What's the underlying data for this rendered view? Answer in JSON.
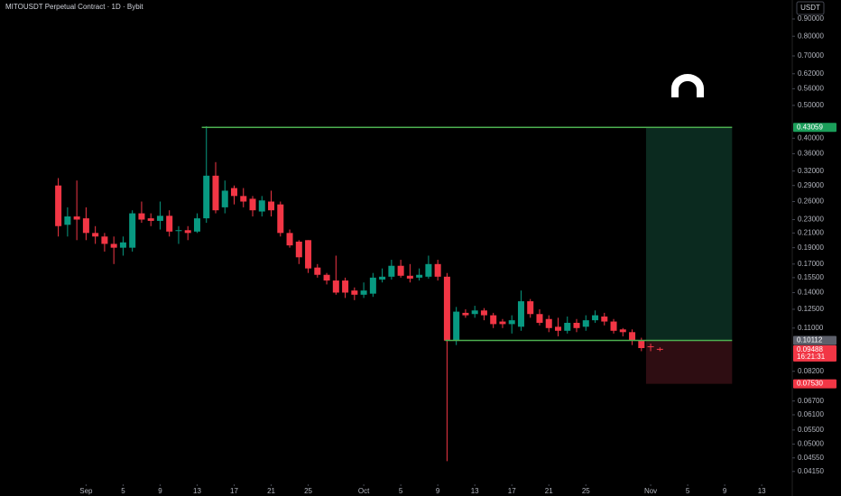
{
  "chart_data": {
    "type": "candlestick",
    "title": "MITOUSDT Perpetual Contract · 1D · Bybit",
    "currency": "USDT",
    "log_scale": true,
    "up_color": "#089981",
    "down_color": "#f23645",
    "open": [
      0.29,
      0.222,
      0.235,
      0.232,
      0.21,
      0.205,
      0.195,
      0.19,
      0.19,
      0.24,
      0.232,
      0.228,
      0.236,
      0.213,
      0.214,
      0.212,
      0.232,
      0.31,
      0.25,
      0.285,
      0.27,
      0.265,
      0.243,
      0.26,
      0.255,
      0.21,
      0.198,
      0.2,
      0.166,
      0.158,
      0.152,
      0.152,
      0.142,
      0.138,
      0.139,
      0.153,
      0.156,
      0.168,
      0.157,
      0.155,
      0.156,
      0.17,
      0.156,
      0.101,
      0.122,
      0.121,
      0.124,
      0.12,
      0.115,
      0.113,
      0.111,
      0.132,
      0.121,
      0.117,
      0.111,
      0.108,
      0.114,
      0.111,
      0.116,
      0.119,
      0.115,
      0.109,
      0.107,
      0.101,
      0.0972,
      0.0955
    ],
    "high": [
      0.305,
      0.25,
      0.3,
      0.25,
      0.22,
      0.21,
      0.205,
      0.205,
      0.245,
      0.26,
      0.24,
      0.26,
      0.245,
      0.22,
      0.22,
      0.24,
      0.434,
      0.34,
      0.3,
      0.29,
      0.285,
      0.27,
      0.27,
      0.28,
      0.26,
      0.215,
      0.2,
      0.2,
      0.17,
      0.16,
      0.18,
      0.155,
      0.145,
      0.15,
      0.16,
      0.165,
      0.175,
      0.175,
      0.17,
      0.165,
      0.18,
      0.175,
      0.16,
      0.127,
      0.125,
      0.128,
      0.126,
      0.122,
      0.117,
      0.12,
      0.142,
      0.134,
      0.125,
      0.12,
      0.118,
      0.119,
      0.117,
      0.12,
      0.124,
      0.122,
      0.117,
      0.11,
      0.109,
      0.103,
      0.099,
      0.0965
    ],
    "low": [
      0.205,
      0.205,
      0.2,
      0.2,
      0.195,
      0.185,
      0.17,
      0.18,
      0.185,
      0.225,
      0.22,
      0.215,
      0.205,
      0.195,
      0.2,
      0.21,
      0.225,
      0.24,
      0.24,
      0.255,
      0.25,
      0.235,
      0.235,
      0.235,
      0.205,
      0.19,
      0.17,
      0.16,
      0.155,
      0.148,
      0.138,
      0.135,
      0.133,
      0.135,
      0.136,
      0.15,
      0.153,
      0.155,
      0.15,
      0.152,
      0.154,
      0.152,
      0.0445,
      0.098,
      0.118,
      0.118,
      0.116,
      0.11,
      0.11,
      0.106,
      0.108,
      0.118,
      0.112,
      0.107,
      0.104,
      0.106,
      0.107,
      0.108,
      0.114,
      0.112,
      0.106,
      0.104,
      0.098,
      0.094,
      0.094,
      0.094
    ],
    "close": [
      0.22,
      0.235,
      0.23,
      0.21,
      0.205,
      0.195,
      0.19,
      0.197,
      0.24,
      0.23,
      0.228,
      0.236,
      0.212,
      0.214,
      0.21,
      0.232,
      0.31,
      0.245,
      0.28,
      0.27,
      0.26,
      0.245,
      0.262,
      0.245,
      0.21,
      0.193,
      0.178,
      0.165,
      0.158,
      0.152,
      0.14,
      0.14,
      0.138,
      0.142,
      0.155,
      0.156,
      0.168,
      0.157,
      0.154,
      0.158,
      0.17,
      0.156,
      0.101,
      0.123,
      0.12,
      0.124,
      0.12,
      0.113,
      0.113,
      0.116,
      0.132,
      0.121,
      0.114,
      0.11,
      0.108,
      0.114,
      0.11,
      0.116,
      0.12,
      0.115,
      0.108,
      0.107,
      0.101,
      0.096,
      0.0968,
      0.09488
    ],
    "xlim": [
      -6.3,
      79.3
    ],
    "xticks": [
      {
        "value": 3,
        "label": "Sep"
      },
      {
        "value": 7,
        "label": "5"
      },
      {
        "value": 11,
        "label": "9"
      },
      {
        "value": 15,
        "label": "13"
      },
      {
        "value": 19,
        "label": "17"
      },
      {
        "value": 23,
        "label": "21"
      },
      {
        "value": 27,
        "label": "25"
      },
      {
        "value": 33,
        "label": "Oct"
      },
      {
        "value": 37,
        "label": "5"
      },
      {
        "value": 41,
        "label": "9"
      },
      {
        "value": 45,
        "label": "13"
      },
      {
        "value": 49,
        "label": "17"
      },
      {
        "value": 53,
        "label": "21"
      },
      {
        "value": 57,
        "label": "25"
      },
      {
        "value": 64,
        "label": "Nov"
      },
      {
        "value": 68,
        "label": "5"
      },
      {
        "value": 72,
        "label": "9"
      },
      {
        "value": 76,
        "label": "13"
      }
    ],
    "ylim": [
      0.0397,
      1.0237
    ],
    "yticks": [
      {
        "value": 0.9,
        "label": "0.90000"
      },
      {
        "value": 0.8,
        "label": "0.80000"
      },
      {
        "value": 0.7,
        "label": "0.70000"
      },
      {
        "value": 0.62,
        "label": "0.62000"
      },
      {
        "value": 0.56,
        "label": "0.56000"
      },
      {
        "value": 0.5,
        "label": "0.50000"
      },
      {
        "value": 0.4,
        "label": "0.40000"
      },
      {
        "value": 0.36,
        "label": "0.36000"
      },
      {
        "value": 0.32,
        "label": "0.32000"
      },
      {
        "value": 0.29,
        "label": "0.29000"
      },
      {
        "value": 0.26,
        "label": "0.26000"
      },
      {
        "value": 0.23,
        "label": "0.23000"
      },
      {
        "value": 0.21,
        "label": "0.21000"
      },
      {
        "value": 0.19,
        "label": "0.19000"
      },
      {
        "value": 0.17,
        "label": "0.17000"
      },
      {
        "value": 0.155,
        "label": "0.15500"
      },
      {
        "value": 0.14,
        "label": "0.14000"
      },
      {
        "value": 0.125,
        "label": "0.12500"
      },
      {
        "value": 0.11,
        "label": "0.11000"
      },
      {
        "value": 0.082,
        "label": "0.08200"
      },
      {
        "value": 0.067,
        "label": "0.06700"
      },
      {
        "value": 0.061,
        "label": "0.06100"
      },
      {
        "value": 0.055,
        "label": "0.05500"
      },
      {
        "value": 0.05,
        "label": "0.05000"
      },
      {
        "value": 0.0455,
        "label": "0.04550"
      },
      {
        "value": 0.0415,
        "label": "0.04150"
      }
    ],
    "lines": [
      {
        "value": 0.43059,
        "label": "0.43059",
        "x": [
          15.5,
          72.8
        ],
        "color": "#4caf50"
      },
      {
        "value": 0.10112,
        "label": "0.10112",
        "x": [
          41.8,
          72.8
        ],
        "color": "#4caf50"
      }
    ],
    "position": {
      "x": [
        63.5,
        72.8
      ],
      "entry": 0.10112,
      "target": 0.43059,
      "stop": {
        "value": 0.0753,
        "label": "0.07530"
      },
      "target_color": "#0b2a1f",
      "stop_color": "#2e0d12"
    },
    "current": {
      "value": 0.09488,
      "label": "0.09488",
      "countdown": "16:21:31"
    }
  }
}
